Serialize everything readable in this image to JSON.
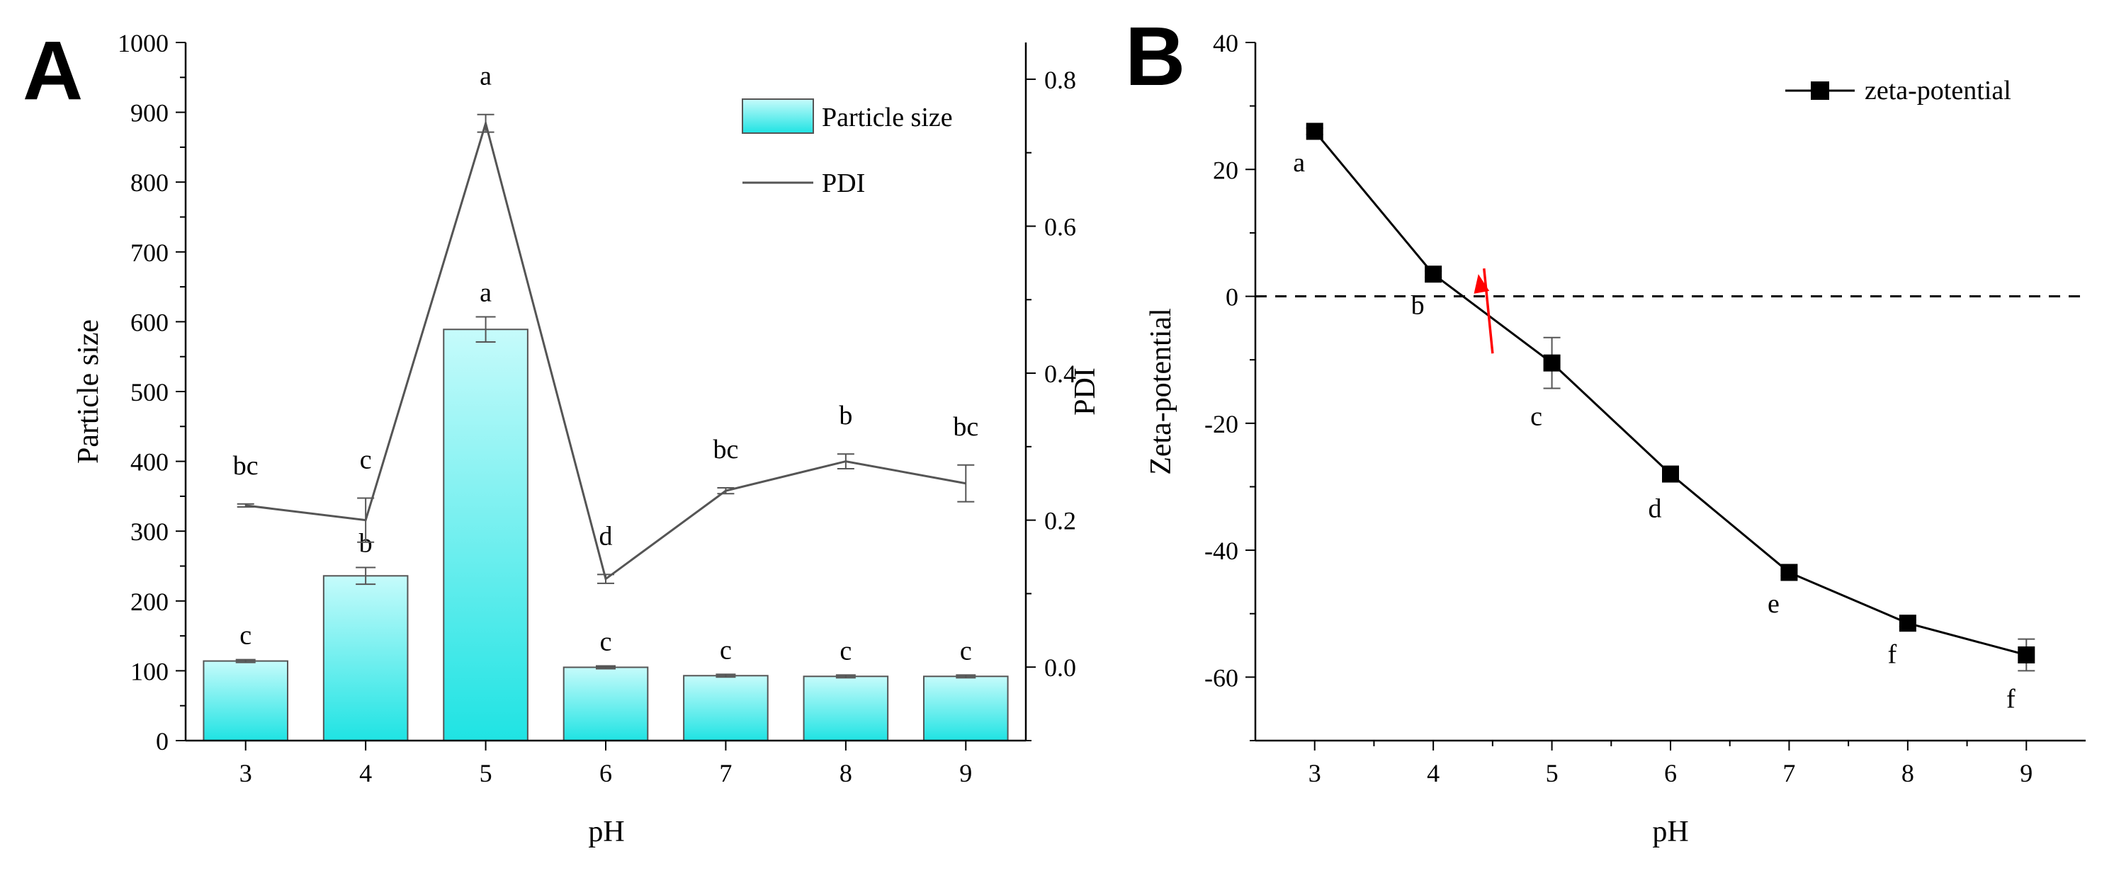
{
  "colors": {
    "axis": "#000000",
    "bar_top": "#c6fbfb",
    "bar_bottom": "#1fe3e3",
    "bar_stroke": "#555555",
    "pdi_line": "#555555",
    "zeta_line": "#000000",
    "arrow": "#ff0000"
  },
  "chart_data": [
    {
      "panel_letter": "A",
      "type": "bar",
      "xlabel": "pH",
      "ylabel": "Particle size",
      "y2label": "PDI",
      "categories": [
        "3",
        "4",
        "5",
        "6",
        "7",
        "8",
        "9"
      ],
      "ylim": [
        0,
        1000
      ],
      "yticks": [
        0,
        100,
        200,
        300,
        400,
        500,
        600,
        700,
        800,
        900,
        1000
      ],
      "y2lim": [
        -0.1,
        0.85
      ],
      "y2ticks": [
        "0.0",
        "0.2",
        "0.4",
        "0.6",
        "0.8"
      ],
      "legend_position": "top-right",
      "series": [
        {
          "name": "Particle size",
          "kind": "bar",
          "axis": "left",
          "values": [
            114,
            236,
            589,
            105,
            93,
            92,
            92
          ],
          "errors": [
            2,
            12,
            18,
            2,
            2,
            2,
            2
          ],
          "labels": [
            "c",
            "b",
            "a",
            "c",
            "c",
            "c",
            "c"
          ]
        },
        {
          "name": "PDI",
          "kind": "line",
          "axis": "right",
          "values": [
            0.22,
            0.2,
            0.74,
            0.12,
            0.24,
            0.28,
            0.25
          ],
          "errors": [
            0.002,
            0.03,
            0.012,
            0.006,
            0.004,
            0.01,
            0.025
          ],
          "labels": [
            "bc",
            "c",
            "a",
            "d",
            "bc",
            "b",
            "bc"
          ]
        }
      ]
    },
    {
      "panel_letter": "B",
      "type": "line",
      "xlabel": "pH",
      "ylabel": "Zeta-potential",
      "x": [
        3,
        4,
        5,
        6,
        7,
        8,
        9
      ],
      "xlim": [
        2.5,
        9.5
      ],
      "ylim": [
        -70,
        40
      ],
      "yticks": [
        -60,
        -40,
        -20,
        0,
        20,
        40
      ],
      "reference_line": {
        "y": 0,
        "style": "dashed"
      },
      "arrow_annotation": {
        "from": [
          4.5,
          -9
        ],
        "to": [
          4.38,
          3.5
        ]
      },
      "legend_position": "top-right",
      "series": [
        {
          "name": "zeta-potential",
          "marker": "square",
          "values": [
            26,
            3.5,
            -10.5,
            -28,
            -43.5,
            -51.5,
            -56.5
          ],
          "errors": [
            0.5,
            0.5,
            4,
            1,
            0.5,
            0.5,
            2.5
          ],
          "labels": [
            "a",
            "b",
            "c",
            "d",
            "e",
            "f",
            "f"
          ]
        }
      ]
    }
  ]
}
